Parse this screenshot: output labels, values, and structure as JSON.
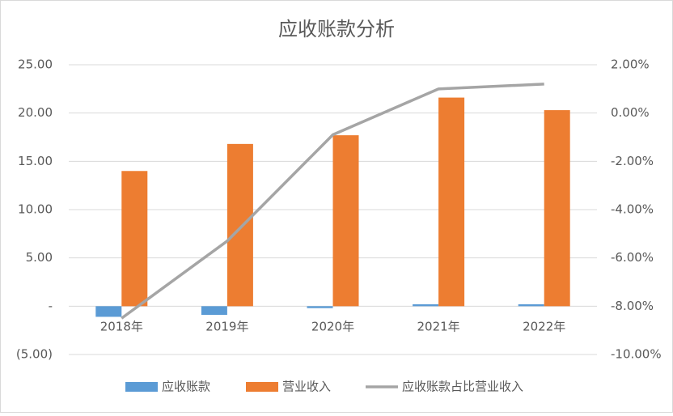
{
  "chart_data": {
    "type": "bar",
    "title": "应收账款分析",
    "categories": [
      "2018年",
      "2019年",
      "2020年",
      "2021年",
      "2022年"
    ],
    "series": [
      {
        "name": "应收账款",
        "color": "#5b9bd5",
        "values": [
          -1.1,
          -0.9,
          -0.2,
          0.2,
          0.2
        ]
      },
      {
        "name": "营业收入",
        "color": "#ed7d31",
        "values": [
          14.0,
          16.8,
          17.7,
          21.6,
          20.3
        ]
      },
      {
        "name": "应收账款占比营业收入",
        "color": "#a5a5a5",
        "type": "line",
        "axis": "y2",
        "values": [
          -8.5,
          -5.3,
          -0.9,
          1.0,
          1.2
        ]
      }
    ],
    "ylim": [
      -5,
      25
    ],
    "yticks": [
      {
        "value": -5,
        "label": "(5.00)"
      },
      {
        "value": 0,
        "label": "-"
      },
      {
        "value": 5,
        "label": "5.00"
      },
      {
        "value": 10,
        "label": "10.00"
      },
      {
        "value": 15,
        "label": "15.00"
      },
      {
        "value": 20,
        "label": "20.00"
      },
      {
        "value": 25,
        "label": "25.00"
      }
    ],
    "y2lim": [
      -10,
      2
    ],
    "y2ticks": [
      {
        "value": -10,
        "label": "-10.00%"
      },
      {
        "value": -8,
        "label": "-8.00%"
      },
      {
        "value": -6,
        "label": "-6.00%"
      },
      {
        "value": -4,
        "label": "-4.00%"
      },
      {
        "value": -2,
        "label": "-2.00%"
      },
      {
        "value": 0,
        "label": "0.00%"
      },
      {
        "value": 2,
        "label": "2.00%"
      }
    ],
    "grid": true,
    "legend": "bottom"
  }
}
